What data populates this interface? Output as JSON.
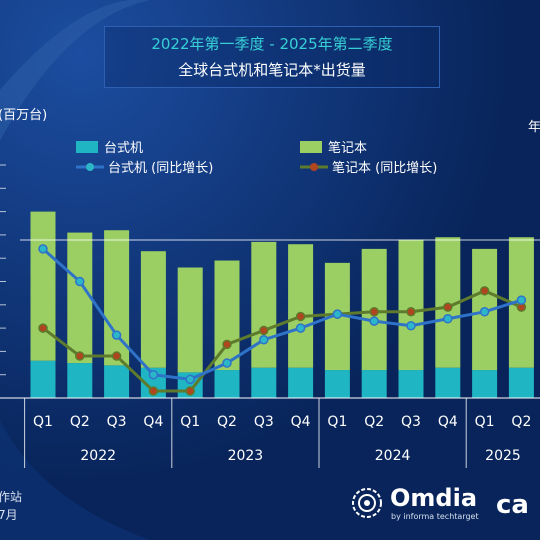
{
  "header": {
    "title_line1": "2022年第一季度 - 2025年第二季度",
    "title_line2": "全球台式机和笔记本*出货量"
  },
  "axes": {
    "left_unit": "(百万台)",
    "right_unit": "年"
  },
  "legend": {
    "desktop": "台式机",
    "notebook": "笔记本",
    "desktop_yoy": "台式机 (同比增长)",
    "notebook_yoy": "笔记本 (同比增长)"
  },
  "footer": {
    "left_line1": "作站",
    "left_line2": "7月"
  },
  "brand": {
    "omdia": "Omdia",
    "omdia_sub": "by informa techtarget",
    "canalys": "ca"
  },
  "colors": {
    "desktop": "#1fb5c2",
    "notebook": "#9ccf63",
    "desktop_line": "#2f73c9",
    "notebook_line": "#5e7a2c",
    "desktop_marker": "#2bb7c8",
    "notebook_marker": "#b0461f",
    "background": "#0a2a63"
  },
  "chart_data": {
    "type": "bar",
    "stacked": true,
    "quarters": [
      "Q1",
      "Q2",
      "Q3",
      "Q4",
      "Q1",
      "Q2",
      "Q3",
      "Q4",
      "Q1",
      "Q2",
      "Q3",
      "Q4",
      "Q1",
      "Q2"
    ],
    "years": [
      {
        "label": "2022",
        "quarters": 4
      },
      {
        "label": "2023",
        "quarters": 4
      },
      {
        "label": "2024",
        "quarters": 4
      },
      {
        "label": "2025",
        "quarters": 2
      }
    ],
    "series": [
      {
        "name": "台式机",
        "values": [
          16,
          15,
          14,
          13,
          11,
          12,
          13,
          13,
          12,
          12,
          12,
          13,
          12,
          13
        ]
      },
      {
        "name": "笔记本",
        "values": [
          64,
          56,
          58,
          50,
          45,
          47,
          54,
          53,
          46,
          52,
          56,
          56,
          52,
          56
        ]
      }
    ],
    "ylim": [
      0,
      100
    ],
    "line_series": [
      {
        "name": "台式机 (同比增长)",
        "values": [
          64,
          50,
          27,
          10,
          8,
          15,
          25,
          30,
          36,
          33,
          31,
          34,
          37,
          42
        ]
      },
      {
        "name": "笔记本 (同比增长)",
        "values": [
          30,
          18,
          18,
          3,
          3,
          23,
          29,
          35,
          36,
          37,
          37,
          39,
          46,
          39
        ]
      }
    ],
    "line_ylim": [
      0,
      100
    ],
    "grid": false
  }
}
